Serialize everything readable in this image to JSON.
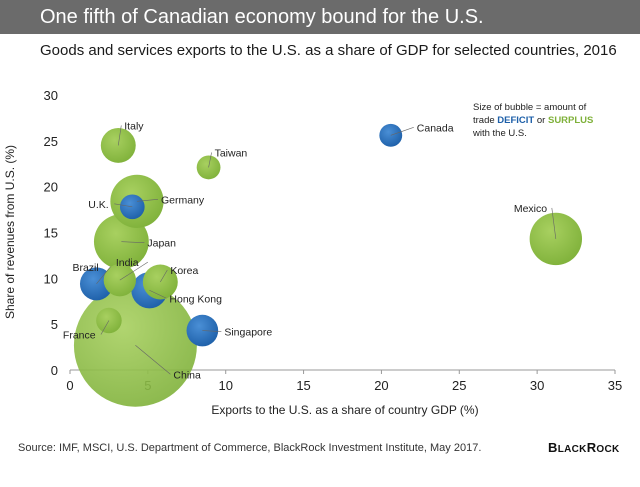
{
  "header": {
    "title": "One fifth of Canadian economy bound for the U.S.",
    "subtitle": "Goods and services exports to the U.S. as a share of GDP for selected countries, 2016"
  },
  "note": {
    "line1": "Size of bubble = amount of",
    "line2_prefix": "trade ",
    "deficit": "DEFICIT",
    "line2_mid": " or ",
    "surplus": "SURPLUS",
    "line3": "with the U.S."
  },
  "footer": {
    "source": "Source: IMF, MSCI, U.S. Department of Commerce, BlackRock Investment Institute, May 2017.",
    "logo_big_B": "B",
    "logo_rest1": "LACK",
    "logo_big_R": "R",
    "logo_rest2": "OCK"
  },
  "colors": {
    "deficit": "#1d5fa8",
    "surplus": "#7fb13a",
    "banner": "#6b6b6b",
    "grid": "#e6e6e6"
  },
  "chart_data": {
    "type": "scatter",
    "title": "Goods and services exports to the U.S. as a share of GDP for selected countries, 2016",
    "xlabel": "Exports to the U.S. as a share of country GDP (%)",
    "ylabel": "Share of revenues from U.S. (%)",
    "xlim": [
      0,
      35
    ],
    "ylim": [
      0,
      30
    ],
    "xticks": [
      0,
      5,
      10,
      15,
      20,
      25,
      30,
      35
    ],
    "yticks": [
      0,
      5,
      10,
      15,
      20,
      25,
      30
    ],
    "grid": false,
    "bubble_size_meaning": "amount of trade deficit or surplus with the U.S.",
    "points": [
      {
        "label": "China",
        "x": 4.2,
        "y": 2.7,
        "size": 347,
        "balance": "surplus"
      },
      {
        "label": "Mexico",
        "x": 31.2,
        "y": 14.3,
        "size": 63,
        "balance": "surplus"
      },
      {
        "label": "Germany",
        "x": 4.3,
        "y": 18.4,
        "size": 65,
        "balance": "surplus"
      },
      {
        "label": "Japan",
        "x": 3.3,
        "y": 14.0,
        "size": 69,
        "balance": "surplus"
      },
      {
        "label": "Italy",
        "x": 3.1,
        "y": 24.5,
        "size": 28,
        "balance": "surplus"
      },
      {
        "label": "India",
        "x": 3.2,
        "y": 9.8,
        "size": 24,
        "balance": "surplus"
      },
      {
        "label": "Korea",
        "x": 5.8,
        "y": 9.6,
        "size": 28,
        "balance": "surplus"
      },
      {
        "label": "France",
        "x": 2.5,
        "y": 5.4,
        "size": 15,
        "balance": "surplus"
      },
      {
        "label": "Taiwan",
        "x": 8.9,
        "y": 22.1,
        "size": 13,
        "balance": "surplus"
      },
      {
        "label": "Hong Kong",
        "x": 5.1,
        "y": 8.7,
        "size": 30,
        "balance": "deficit"
      },
      {
        "label": "Brazil",
        "x": 1.7,
        "y": 9.4,
        "size": 25,
        "balance": "deficit"
      },
      {
        "label": "U.K.",
        "x": 4.0,
        "y": 17.8,
        "size": 14,
        "balance": "deficit"
      },
      {
        "label": "Singapore",
        "x": 8.5,
        "y": 4.3,
        "size": 23,
        "balance": "deficit"
      },
      {
        "label": "Canada",
        "x": 20.6,
        "y": 25.6,
        "size": 12,
        "balance": "deficit"
      }
    ]
  }
}
